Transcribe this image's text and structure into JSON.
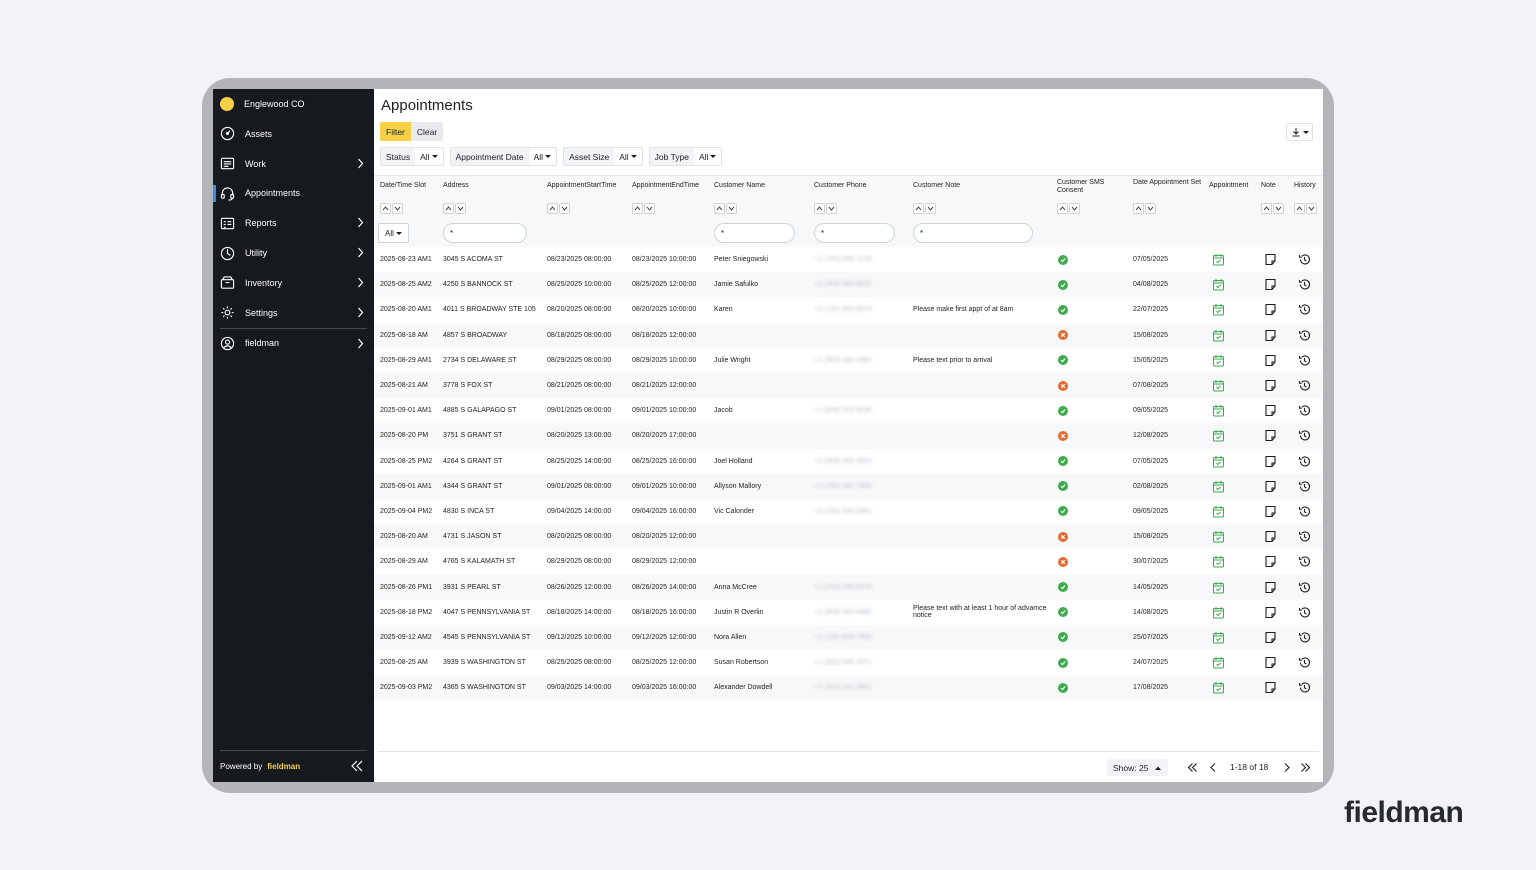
{
  "sidebar": {
    "org_name": "Englewood CO",
    "items": [
      {
        "label": "Assets"
      },
      {
        "label": "Work"
      },
      {
        "label": "Appointments"
      },
      {
        "label": "Reports"
      },
      {
        "label": "Utility"
      },
      {
        "label": "Inventory"
      },
      {
        "label": "Settings"
      },
      {
        "label": "fieldman"
      }
    ],
    "footer_text": "Powered by",
    "footer_brand": "fieldman"
  },
  "page": {
    "title": "Appointments"
  },
  "toolbar": {
    "filter_label": "Filter",
    "clear_label": "Clear"
  },
  "filters": [
    {
      "label": "Status",
      "value": "All"
    },
    {
      "label": "Appointment Date",
      "value": "All"
    },
    {
      "label": "Asset Size",
      "value": "All"
    },
    {
      "label": "Job Type",
      "value": "All"
    }
  ],
  "table": {
    "headers": [
      "Date/Time Slot",
      "Address",
      "AppointmentStartTime",
      "AppointmentEndTime",
      "Customer Name",
      "Customer Phone",
      "Customer Note",
      "Customer SMS Consent",
      "Date Appointment Set",
      "Appointment",
      "Note",
      "History"
    ],
    "slot_filter": "All",
    "input_placeholder": "*",
    "rows": [
      {
        "slot": "2025-08-23 AM1",
        "address": "3045 S ACOMA ST",
        "start": "08/23/2025 08:00:00",
        "end": "08/23/2025 10:00:00",
        "name": "Peter Sniegowski",
        "phone": "+1 (720) 555-7278",
        "note": "",
        "sms": "yes",
        "set": "07/05/2025"
      },
      {
        "slot": "2025-08-25 AM2",
        "address": "4250 S BANNOCK ST",
        "start": "08/25/2025 10:00:00",
        "end": "08/25/2025 12:00:00",
        "name": "Jamie Safulko",
        "phone": "+1 (303) 555-8421",
        "note": "",
        "sms": "yes",
        "set": "04/08/2025"
      },
      {
        "slot": "2025-08-20 AM1",
        "address": "4011 S BROADWAY STE 105",
        "start": "08/20/2025 08:00:00",
        "end": "08/20/2025 10:00:00",
        "name": "Karen",
        "phone": "+1 (720) 551-9374",
        "note": "Please make first appt of at 8am",
        "sms": "yes",
        "set": "22/07/2025"
      },
      {
        "slot": "2025-08-18 AM",
        "address": "4857 S BROADWAY",
        "start": "08/18/2025 08:00:00",
        "end": "08/18/2025 12:00:00",
        "name": "",
        "phone": "",
        "note": "",
        "sms": "no",
        "set": "15/08/2025"
      },
      {
        "slot": "2025-08-29 AM1",
        "address": "2734 S DELAWARE ST",
        "start": "08/29/2025 08:00:00",
        "end": "08/29/2025 10:00:00",
        "name": "Julie Wright",
        "phone": "+1 (303) 444-3352",
        "note": "Please text prior to arrival",
        "sms": "yes",
        "set": "15/05/2025"
      },
      {
        "slot": "2025-08-21 AM",
        "address": "3778 S FOX ST",
        "start": "08/21/2025 08:00:00",
        "end": "08/21/2025 12:00:00",
        "name": "",
        "phone": "",
        "note": "",
        "sms": "no",
        "set": "07/08/2025"
      },
      {
        "slot": "2025-09-01 AM1",
        "address": "4885 S GALAPAGO ST",
        "start": "09/01/2025 08:00:00",
        "end": "09/01/2025 10:00:00",
        "name": "Jacob",
        "phone": "+1 (828) 515-4536",
        "note": "",
        "sms": "yes",
        "set": "09/05/2025"
      },
      {
        "slot": "2025-08-20 PM",
        "address": "3751 S GRANT ST",
        "start": "08/20/2025 13:00:00",
        "end": "08/20/2025 17:00:00",
        "name": "",
        "phone": "",
        "note": "",
        "sms": "no",
        "set": "12/08/2025"
      },
      {
        "slot": "2025-08-25 PM2",
        "address": "4264 S GRANT ST",
        "start": "08/25/2025 14:00:00",
        "end": "08/25/2025 16:00:00",
        "name": "Joel Holland",
        "phone": "+1 (303) 669-3024",
        "note": "",
        "sms": "yes",
        "set": "07/05/2025"
      },
      {
        "slot": "2025-09-01 AM1",
        "address": "4344 S GRANT ST",
        "start": "09/01/2025 08:00:00",
        "end": "09/01/2025 10:00:00",
        "name": "Allyson Mallory",
        "phone": "+1 (760) 492-7909",
        "note": "",
        "sms": "yes",
        "set": "02/08/2025"
      },
      {
        "slot": "2025-09-04 PM2",
        "address": "4830 S INCA ST",
        "start": "09/04/2025 14:00:00",
        "end": "09/04/2025 16:00:00",
        "name": "Vic Calonder",
        "phone": "+1 (720) 930-2861",
        "note": "",
        "sms": "yes",
        "set": "09/05/2025"
      },
      {
        "slot": "2025-08-20 AM",
        "address": "4731 S JASON ST",
        "start": "08/20/2025 08:00:00",
        "end": "08/20/2025 12:00:00",
        "name": "",
        "phone": "",
        "note": "",
        "sms": "no",
        "set": "15/08/2025"
      },
      {
        "slot": "2025-08-29 AM",
        "address": "4765 S KALAMATH ST",
        "start": "08/29/2025 08:00:00",
        "end": "08/29/2025 12:00:00",
        "name": "",
        "phone": "",
        "note": "",
        "sms": "no",
        "set": "30/07/2025"
      },
      {
        "slot": "2025-08-26 PM1",
        "address": "3931 S PEARL ST",
        "start": "08/26/2025 12:00:00",
        "end": "08/26/2025 14:00:00",
        "name": "Anna McCree",
        "phone": "+1 (714) 200-4376",
        "note": "",
        "sms": "yes",
        "set": "14/05/2025"
      },
      {
        "slot": "2025-08-18 PM2",
        "address": "4047 S PENNSYLVANIA ST",
        "start": "08/18/2025 14:00:00",
        "end": "08/18/2025 16:00:00",
        "name": "Justin R Overlin",
        "phone": "+1 (303) 552-6480",
        "note": "Please text with at least 1 hour of advamce notice",
        "sms": "yes",
        "set": "14/08/2025"
      },
      {
        "slot": "2025-09-12 AM2",
        "address": "4545 S PENNSYLVANIA ST",
        "start": "09/12/2025 10:00:00",
        "end": "09/12/2025 12:00:00",
        "name": "Nora Allen",
        "phone": "+1 (720) 878-7935",
        "note": "",
        "sms": "yes",
        "set": "25/07/2025"
      },
      {
        "slot": "2025-08-25 AM",
        "address": "3939 S WASHINGTON ST",
        "start": "08/25/2025 08:00:00",
        "end": "08/25/2025 12:00:00",
        "name": "Susan Robertson",
        "phone": "+1 (303) 548-2971",
        "note": "",
        "sms": "yes",
        "set": "24/07/2025"
      },
      {
        "slot": "2025-09-03 PM2",
        "address": "4365 S WASHINGTON ST",
        "start": "09/03/2025 14:00:00",
        "end": "09/03/2025 16:00:00",
        "name": "Alexander Dowdell",
        "phone": "+1 (303) 241-3821",
        "note": "",
        "sms": "yes",
        "set": "17/08/2025"
      }
    ]
  },
  "pager": {
    "show_label": "Show: 25",
    "range": "1-18 of 18"
  },
  "brand_logo": "fieldman",
  "colors": {
    "accent": "#f7d046",
    "sidebar": "#16191d",
    "success": "#3eab4d",
    "error": "#e46a2e",
    "calendar": "#3eab4d"
  }
}
